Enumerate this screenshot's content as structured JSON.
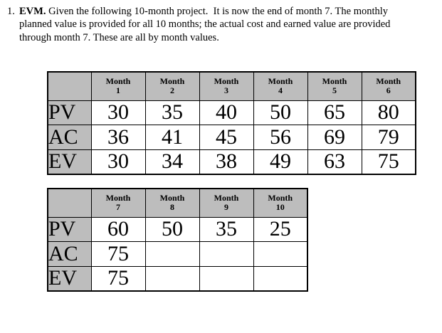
{
  "intro": {
    "number": "1.",
    "lead": "EVM.",
    "text": "Given the following 10-month project.  It is now the end of month 7. The monthly planned value is provided for all 10 months; the actual cost and earned value are provided through month 7. These are all by month values."
  },
  "tables": {
    "month_word": "Month",
    "first": {
      "months": [
        "1",
        "2",
        "3",
        "4",
        "5",
        "6"
      ],
      "rows": [
        {
          "label": "PV",
          "values": [
            "30",
            "35",
            "40",
            "50",
            "65",
            "80"
          ]
        },
        {
          "label": "AC",
          "values": [
            "36",
            "41",
            "45",
            "56",
            "69",
            "79"
          ]
        },
        {
          "label": "EV",
          "values": [
            "30",
            "34",
            "38",
            "49",
            "63",
            "75"
          ]
        }
      ]
    },
    "second": {
      "months": [
        "7",
        "8",
        "9",
        "10"
      ],
      "rows": [
        {
          "label": "PV",
          "values": [
            "60",
            "50",
            "35",
            "25"
          ]
        },
        {
          "label": "AC",
          "values": [
            "75",
            "",
            "",
            ""
          ]
        },
        {
          "label": "EV",
          "values": [
            "75",
            "",
            "",
            ""
          ]
        }
      ]
    }
  },
  "colors": {
    "header_gray": "#bdbdbd",
    "border": "#000000",
    "text": "#000000",
    "background": "#ffffff"
  }
}
